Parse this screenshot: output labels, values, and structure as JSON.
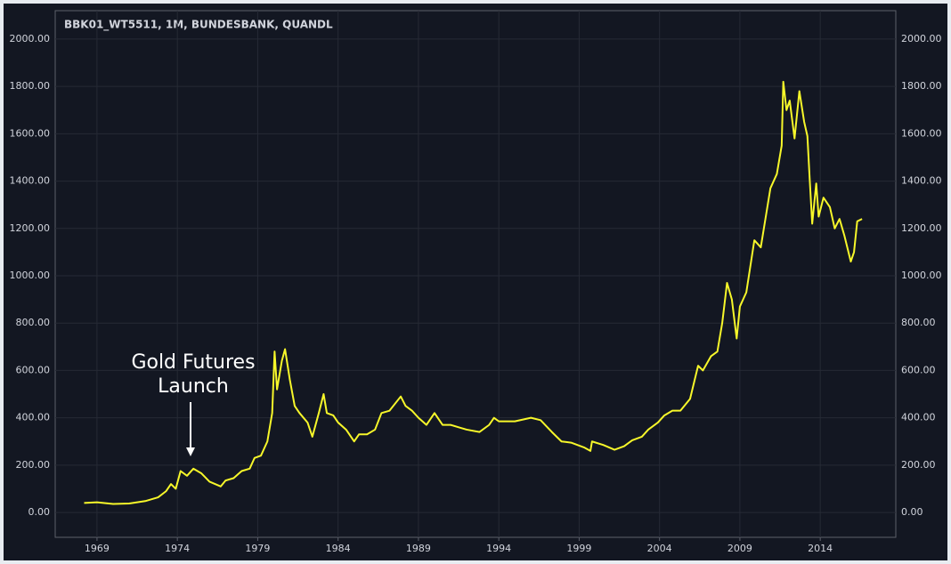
{
  "chart_data": {
    "type": "line",
    "title": "BBK01_WT5511, 1M, BUNDESBANK, QUANDL",
    "annotation": "Gold Futures Launch",
    "xlim": [
      1966.4,
      2018.7
    ],
    "xticks": [
      1969,
      1974,
      1979,
      1984,
      1989,
      1994,
      1999,
      2004,
      2009,
      2014
    ],
    "ylim": [
      -105,
      2120
    ],
    "yticks": [
      {
        "value": 0,
        "label": "0.00"
      },
      {
        "value": 200,
        "label": "200.00"
      },
      {
        "value": 400,
        "label": "400.00"
      },
      {
        "value": 600,
        "label": "600.00"
      },
      {
        "value": 800,
        "label": "800.00"
      },
      {
        "value": 1000,
        "label": "1000.00"
      },
      {
        "value": 1200,
        "label": "1200.00"
      },
      {
        "value": 1400,
        "label": "1400.00"
      },
      {
        "value": 1600,
        "label": "1600.00"
      },
      {
        "value": 1800,
        "label": "1800.00"
      },
      {
        "value": 2000,
        "label": "2000.00"
      }
    ],
    "grid": true,
    "series": [
      {
        "color": "#f7f72a",
        "x": [
          1968.2,
          1969,
          1970,
          1971,
          1972,
          1972.8,
          1973.3,
          1973.6,
          1973.9,
          1974.2,
          1974.6,
          1975,
          1975.5,
          1976,
          1976.7,
          1977,
          1977.5,
          1978,
          1978.5,
          1978.8,
          1979.2,
          1979.6,
          1979.9,
          1980.05,
          1980.2,
          1980.5,
          1980.7,
          1981,
          1981.3,
          1981.6,
          1982.1,
          1982.4,
          1982.8,
          1983.1,
          1983.3,
          1983.7,
          1984,
          1984.5,
          1985,
          1985.3,
          1985.8,
          1986.3,
          1986.7,
          1987.2,
          1987.9,
          1988.2,
          1988.6,
          1989,
          1989.5,
          1990,
          1990.5,
          1991,
          1991.5,
          1992,
          1992.8,
          1993.4,
          1993.7,
          1994,
          1995,
          1996,
          1996.6,
          1997.3,
          1997.9,
          1998.5,
          1999.3,
          1999.7,
          1999.8,
          2000.5,
          2001.2,
          2001.8,
          2002.3,
          2002.9,
          2003.3,
          2003.9,
          2004.3,
          2004.8,
          2005.3,
          2005.9,
          2006.4,
          2006.7,
          2007.2,
          2007.6,
          2007.9,
          2008.2,
          2008.5,
          2008.8,
          2009,
          2009.4,
          2009.9,
          2010.3,
          2010.9,
          2011.3,
          2011.6,
          2011.7,
          2011.9,
          2012.1,
          2012.4,
          2012.7,
          2013,
          2013.2,
          2013.35,
          2013.5,
          2013.75,
          2013.9,
          2014.2,
          2014.6,
          2014.9,
          2015.2,
          2015.5,
          2015.9,
          2016.1,
          2016.3,
          2016.6
        ],
        "values": [
          40,
          43,
          36,
          38,
          48,
          64,
          90,
          120,
          100,
          175,
          155,
          185,
          165,
          130,
          110,
          135,
          145,
          175,
          185,
          230,
          240,
          300,
          420,
          680,
          520,
          640,
          690,
          560,
          450,
          420,
          380,
          320,
          420,
          500,
          420,
          410,
          380,
          350,
          300,
          330,
          330,
          350,
          420,
          430,
          490,
          450,
          430,
          400,
          370,
          420,
          370,
          370,
          360,
          350,
          340,
          370,
          400,
          385,
          385,
          400,
          390,
          340,
          300,
          295,
          275,
          260,
          300,
          285,
          265,
          280,
          305,
          320,
          350,
          380,
          410,
          430,
          430,
          480,
          620,
          600,
          660,
          680,
          800,
          970,
          900,
          735,
          870,
          930,
          1150,
          1120,
          1370,
          1430,
          1550,
          1820,
          1700,
          1740,
          1580,
          1780,
          1650,
          1590,
          1400,
          1220,
          1390,
          1250,
          1330,
          1290,
          1200,
          1240,
          1170,
          1060,
          1100,
          1230,
          1240
        ]
      }
    ]
  }
}
